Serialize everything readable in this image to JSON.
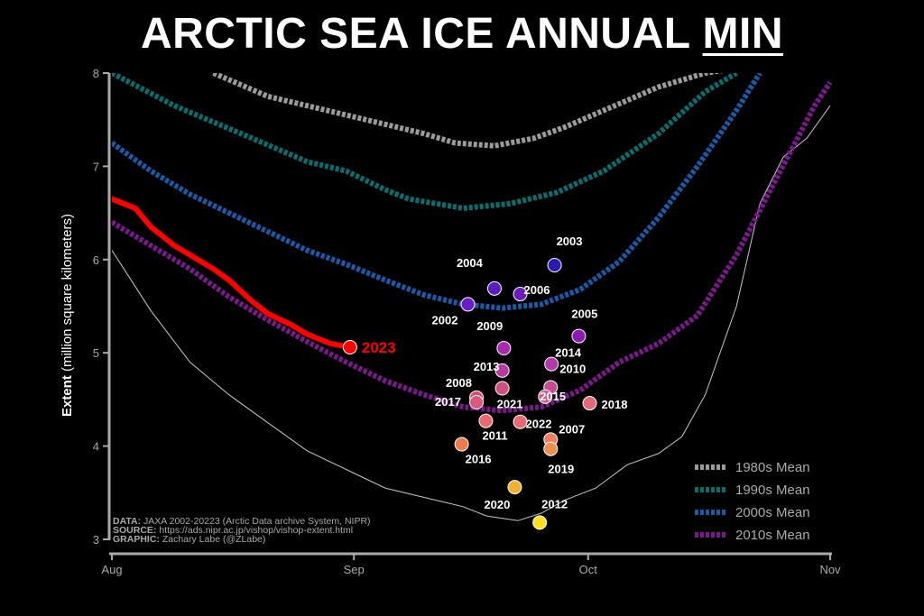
{
  "title_main": "ARCTIC SEA ICE ANNUAL ",
  "title_emph": "MIN",
  "chart_data": {
    "type": "line",
    "ylabel_bold": "Extent",
    "ylabel_rest": " (million square kilometers)",
    "ylim": [
      3,
      8
    ],
    "yticks": [
      "3",
      "4",
      "5",
      "6",
      "7",
      "8"
    ],
    "x_months": [
      "Aug",
      "Sep",
      "Oct",
      "Nov"
    ],
    "x_month_day": [
      0,
      31,
      61,
      92
    ],
    "xlim": [
      0,
      92
    ],
    "series": [
      {
        "name": "1980s Mean",
        "color": "#9a9a9a",
        "x": [
          13,
          20,
          30,
          40,
          44,
          49,
          54,
          58,
          63,
          70,
          76,
          80
        ],
        "y": [
          8.0,
          7.75,
          7.55,
          7.35,
          7.25,
          7.22,
          7.3,
          7.42,
          7.6,
          7.85,
          8.0,
          8.05
        ]
      },
      {
        "name": "1990s Mean",
        "color": "#0a6e6e",
        "x": [
          0,
          8,
          18,
          25,
          30,
          35,
          38,
          45,
          51,
          57,
          63,
          70,
          76,
          80
        ],
        "y": [
          8.0,
          7.65,
          7.3,
          7.05,
          6.95,
          6.75,
          6.65,
          6.55,
          6.6,
          6.72,
          6.95,
          7.35,
          7.8,
          8.0
        ]
      },
      {
        "name": "2000s Mean",
        "color": "#1a5aa8",
        "x": [
          0,
          5,
          10,
          15,
          20,
          25,
          30,
          35,
          40,
          45,
          50,
          55,
          60,
          65,
          70,
          75,
          80,
          83
        ],
        "y": [
          7.25,
          6.95,
          6.7,
          6.5,
          6.3,
          6.1,
          5.95,
          5.78,
          5.62,
          5.52,
          5.48,
          5.52,
          5.68,
          5.98,
          6.45,
          7.0,
          7.6,
          8.0
        ]
      },
      {
        "name": "2010s Mean",
        "color": "#7a1a8a",
        "x": [
          0,
          5,
          10,
          15,
          20,
          25,
          30,
          35,
          40,
          45,
          50,
          55,
          60,
          65,
          70,
          75,
          80,
          85,
          90,
          92
        ],
        "y": [
          6.4,
          6.15,
          5.9,
          5.6,
          5.35,
          5.12,
          4.9,
          4.7,
          4.55,
          4.42,
          4.38,
          4.42,
          4.6,
          4.9,
          5.1,
          5.4,
          6.05,
          6.85,
          7.65,
          7.9
        ]
      }
    ],
    "min_line": {
      "color": "#c8c8c8",
      "x": [
        0,
        5,
        10,
        15,
        20,
        25,
        30,
        35,
        40,
        45,
        48,
        52,
        55,
        58,
        62,
        66,
        70,
        73,
        76,
        80,
        83,
        86,
        89,
        92
      ],
      "y": [
        6.1,
        5.45,
        4.9,
        4.55,
        4.25,
        3.95,
        3.75,
        3.55,
        3.45,
        3.35,
        3.25,
        3.2,
        3.28,
        3.42,
        3.55,
        3.8,
        3.92,
        4.1,
        4.55,
        5.5,
        6.6,
        7.1,
        7.3,
        7.65
      ]
    },
    "current": {
      "label": "2023",
      "color": "#ff0000",
      "x": [
        0,
        3,
        5,
        8,
        10,
        13,
        15,
        18,
        20,
        23,
        25,
        28,
        30.5
      ],
      "y": [
        6.65,
        6.55,
        6.35,
        6.15,
        6.05,
        5.9,
        5.78,
        5.55,
        5.42,
        5.3,
        5.2,
        5.1,
        5.06
      ]
    },
    "minimum_points": [
      {
        "year": "2002",
        "x": 45.6,
        "y": 5.52,
        "color": "#6a1cc8"
      },
      {
        "year": "2003",
        "x": 56.7,
        "y": 5.94,
        "color": "#2a1ab0"
      },
      {
        "year": "2004",
        "x": 49.0,
        "y": 5.69,
        "color": "#5a1cc0"
      },
      {
        "year": "2005",
        "x": 59.8,
        "y": 5.18,
        "color": "#8a1ab0"
      },
      {
        "year": "2006",
        "x": 52.3,
        "y": 5.63,
        "color": "#6a1cc0"
      },
      {
        "year": "2007",
        "x": 56.2,
        "y": 4.07,
        "color": "#f08060"
      },
      {
        "year": "2008",
        "x": 46.7,
        "y": 4.52,
        "color": "#d05078"
      },
      {
        "year": "2009",
        "x": 50.2,
        "y": 5.05,
        "color": "#a82ab0"
      },
      {
        "year": "2010",
        "x": 56.2,
        "y": 4.63,
        "color": "#c84a90"
      },
      {
        "year": "2011",
        "x": 47.9,
        "y": 4.27,
        "color": "#e86a70"
      },
      {
        "year": "2012",
        "x": 54.8,
        "y": 3.18,
        "color": "#ffe020"
      },
      {
        "year": "2013",
        "x": 50.0,
        "y": 4.81,
        "color": "#b83aa0"
      },
      {
        "year": "2014",
        "x": 56.3,
        "y": 4.88,
        "color": "#b03aa8"
      },
      {
        "year": "2015",
        "x": 55.5,
        "y": 4.53,
        "color": "#d05a88"
      },
      {
        "year": "2016",
        "x": 44.8,
        "y": 4.02,
        "color": "#f07a50"
      },
      {
        "year": "2017",
        "x": 46.7,
        "y": 4.47,
        "color": "#d85a80"
      },
      {
        "year": "2018",
        "x": 61.2,
        "y": 4.46,
        "color": "#e06a78"
      },
      {
        "year": "2019",
        "x": 56.2,
        "y": 3.97,
        "color": "#f09050"
      },
      {
        "year": "2020",
        "x": 51.6,
        "y": 3.56,
        "color": "#f0b030"
      },
      {
        "year": "2021",
        "x": 50.0,
        "y": 4.62,
        "color": "#d05080"
      },
      {
        "year": "2022",
        "x": 52.3,
        "y": 4.26,
        "color": "#e86a70"
      }
    ],
    "credits": [
      {
        "key": "DATA:",
        "text": " JAXA 2002-20223 (Arctic Data archive System, NIPR)"
      },
      {
        "key": "SOURCE:",
        "text": " https://ads.nipr.ac.jp/vishop/vishop-extent.html"
      },
      {
        "key": "GRAPHIC:",
        "text": " Zachary Labe (@ZLabe)"
      }
    ],
    "legend_position": "bottom-right"
  }
}
